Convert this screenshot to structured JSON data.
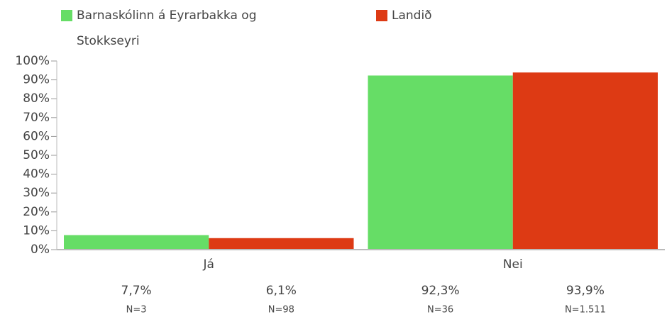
{
  "chart_data": {
    "type": "bar",
    "categories": [
      "Já",
      "Nei"
    ],
    "series": [
      {
        "name": "Barnaskólinn á Eyrarbakka og Stokkseyri",
        "color": "#66dd66",
        "values": [
          7.7,
          92.3
        ],
        "value_labels": [
          "7,7%",
          "92,3%"
        ],
        "n_labels": [
          "N=3",
          "N=36"
        ]
      },
      {
        "name": "Landið",
        "color": "#dd3a14",
        "values": [
          6.1,
          93.9
        ],
        "value_labels": [
          "6,1%",
          "93,9%"
        ],
        "n_labels": [
          "N=98",
          "N=1.511"
        ]
      }
    ],
    "ylim": [
      0,
      100
    ],
    "yticks": [
      {
        "value": 0,
        "label": "0%"
      },
      {
        "value": 10,
        "label": "10%"
      },
      {
        "value": 20,
        "label": "20%"
      },
      {
        "value": 30,
        "label": "30%"
      },
      {
        "value": 40,
        "label": "40%"
      },
      {
        "value": 50,
        "label": "50%"
      },
      {
        "value": 60,
        "label": "60%"
      },
      {
        "value": 70,
        "label": "70%"
      },
      {
        "value": 80,
        "label": "80%"
      },
      {
        "value": 90,
        "label": "90%"
      },
      {
        "value": 100,
        "label": "100%"
      }
    ],
    "legend": "top"
  }
}
